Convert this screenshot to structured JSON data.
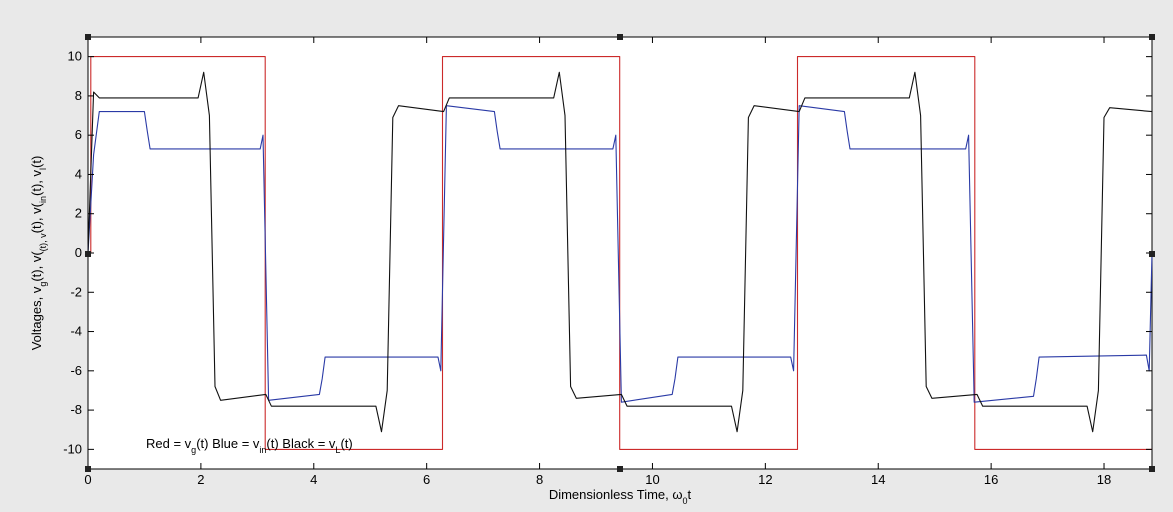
{
  "chart_data": {
    "type": "line",
    "xlabel": "Dimensionless Time, ω",
    "xlabel_sub": "0",
    "xlabel_tail": "t",
    "ylabel_parts": [
      "Voltages, v",
      "g",
      "(t), v(",
      "(t), v",
      "in",
      "(t), v",
      "l",
      "(t)"
    ],
    "xlim": [
      0,
      18.85
    ],
    "ylim": [
      -11,
      11
    ],
    "xticks": [
      0,
      2,
      4,
      6,
      8,
      10,
      12,
      14,
      16,
      18
    ],
    "yticks": [
      -10,
      -8,
      -6,
      -4,
      -2,
      0,
      2,
      4,
      6,
      8,
      10
    ],
    "grid": false,
    "legend_note": {
      "p1": "Red = v",
      "s1": "g",
      "p2": "(t) Blue = v",
      "s2": "in",
      "p3": "(t) Black = v",
      "s3": "L",
      "p4": "(t)"
    },
    "colors": {
      "red": "#cc2a2a",
      "blue": "#2a3aa6",
      "black": "#111111"
    },
    "series": [
      {
        "key": "red",
        "x": [
          0,
          0.05,
          0.05,
          3.14,
          3.14,
          6.28,
          6.28,
          9.42,
          9.42,
          12.57,
          12.57,
          15.71,
          15.71,
          18.85
        ],
        "y": [
          0,
          0,
          10,
          10,
          -10,
          -10,
          10,
          10,
          -10,
          -10,
          10,
          10,
          -10,
          -10
        ]
      },
      {
        "key": "blue",
        "x": [
          0,
          0.1,
          0.2,
          1.0,
          1.05,
          1.1,
          3.05,
          3.1,
          3.2,
          4.1,
          4.15,
          4.2,
          6.2,
          6.25,
          6.35,
          7.2,
          7.25,
          7.3,
          9.3,
          9.35,
          9.45,
          10.35,
          10.4,
          10.45,
          12.45,
          12.5,
          12.6,
          13.4,
          13.45,
          13.5,
          15.55,
          15.6,
          15.7,
          16.75,
          16.8,
          16.85,
          18.75,
          18.8,
          18.85
        ],
        "y": [
          0,
          5,
          7.2,
          7.2,
          6.2,
          5.3,
          5.3,
          6.0,
          -7.5,
          -7.2,
          -6.4,
          -5.3,
          -5.3,
          -6.0,
          7.5,
          7.2,
          6.2,
          5.3,
          5.3,
          6.0,
          -7.6,
          -7.2,
          -6.4,
          -5.3,
          -5.3,
          -6.0,
          7.5,
          7.2,
          6.2,
          5.3,
          5.3,
          6.0,
          -7.6,
          -7.3,
          -6.4,
          -5.3,
          -5.2,
          -6.0,
          0
        ]
      },
      {
        "key": "black",
        "x": [
          0,
          0.1,
          0.2,
          1.95,
          2.05,
          2.15,
          2.25,
          2.35,
          3.15,
          3.25,
          3.35,
          5.1,
          5.2,
          5.3,
          5.4,
          5.5,
          6.3,
          6.4,
          6.5,
          8.25,
          8.35,
          8.45,
          8.55,
          8.65,
          9.45,
          9.55,
          9.65,
          11.4,
          11.5,
          11.6,
          11.7,
          11.8,
          12.6,
          12.7,
          12.8,
          14.55,
          14.65,
          14.75,
          14.85,
          14.95,
          15.75,
          15.85,
          15.95,
          17.7,
          17.8,
          17.9,
          18.0,
          18.1,
          18.85
        ],
        "y": [
          0,
          8.2,
          7.9,
          7.9,
          9.2,
          7.0,
          -6.8,
          -7.5,
          -7.2,
          -7.8,
          -7.8,
          -7.8,
          -9.1,
          -7.0,
          6.9,
          7.5,
          7.2,
          7.9,
          7.9,
          7.9,
          9.2,
          7.0,
          -6.8,
          -7.4,
          -7.2,
          -7.8,
          -7.8,
          -7.8,
          -9.1,
          -7.0,
          6.9,
          7.5,
          7.2,
          7.9,
          7.9,
          7.9,
          9.2,
          7.0,
          -6.8,
          -7.4,
          -7.2,
          -7.8,
          -7.8,
          -7.8,
          -9.1,
          -7.0,
          6.9,
          7.4,
          7.2
        ]
      }
    ]
  }
}
